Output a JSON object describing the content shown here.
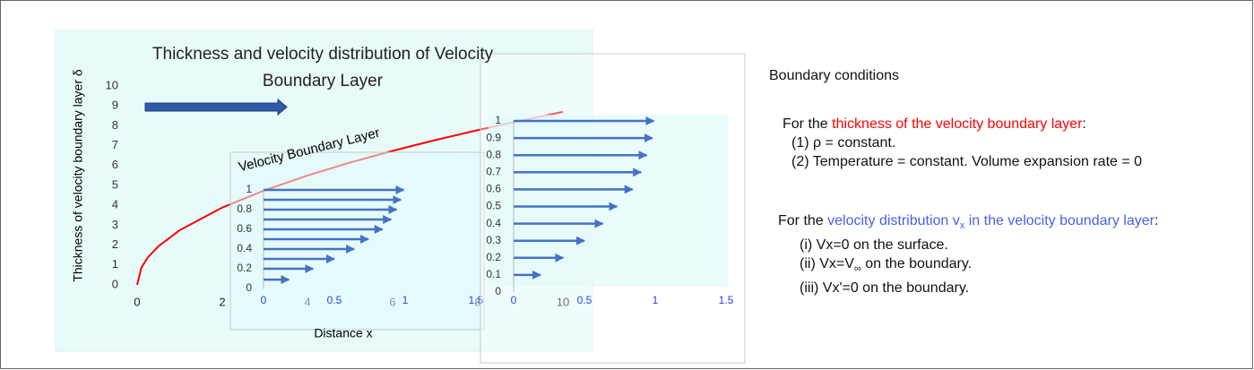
{
  "chart_data": [
    {
      "type": "line",
      "title": "Thickness and velocity distribution of Velocity Boundary Layer",
      "xlabel": "Distance x",
      "ylabel": "Thickness of velocity boundary layer δ",
      "annotation": "Velocity Boundary Layer",
      "x": [
        0,
        0.1,
        0.25,
        0.5,
        1,
        2,
        3,
        4,
        5,
        6,
        7,
        8,
        9,
        10
      ],
      "values": [
        0,
        0.87,
        1.38,
        1.94,
        2.75,
        3.89,
        4.76,
        5.5,
        6.15,
        6.74,
        7.28,
        7.78,
        8.25,
        8.7
      ],
      "color": "#ff0000",
      "xlim": [
        0,
        10
      ],
      "ylim": [
        0,
        10
      ],
      "xticks": [
        0,
        2,
        4,
        6,
        8,
        10
      ],
      "yticks": [
        0,
        1,
        2,
        3,
        4,
        5,
        6,
        7,
        8,
        9,
        10
      ]
    },
    {
      "type": "quiver",
      "y": [
        0.09,
        0.2,
        0.3,
        0.4,
        0.5,
        0.6,
        0.7,
        0.8,
        0.9,
        1
      ],
      "values": [
        0.18,
        0.35,
        0.5,
        0.64,
        0.74,
        0.84,
        0.9,
        0.94,
        0.97,
        0.99
      ],
      "color": "#4472c4",
      "xlim": [
        0,
        1.5
      ],
      "ylim": [
        0,
        1
      ],
      "xticks": [
        0,
        0.5,
        1,
        1.5
      ],
      "yticks": [
        0,
        0.2,
        0.4,
        0.6,
        0.8,
        1
      ]
    },
    {
      "type": "quiver",
      "y": [
        0.1,
        0.2,
        0.3,
        0.4,
        0.5,
        0.6,
        0.7,
        0.8,
        0.9,
        1
      ],
      "values": [
        0.19,
        0.35,
        0.5,
        0.63,
        0.73,
        0.84,
        0.9,
        0.94,
        0.98,
        0.99
      ],
      "color": "#4472c4",
      "xlim": [
        0,
        1.5
      ],
      "ylim": [
        0,
        1
      ],
      "xticks": [
        0,
        0.5,
        1,
        1.5
      ],
      "yticks": [
        0,
        0.1,
        0.2,
        0.3,
        0.4,
        0.5,
        0.6,
        0.7,
        0.8,
        0.9,
        1
      ]
    }
  ],
  "notes": {
    "heading": "Boundary conditions",
    "thickness": {
      "prefix": "For the",
      "highlight": "thickness of the velocity boundary layer",
      "suffix": ":",
      "items": [
        "(1) ρ = constant.",
        "(2) Temperature = constant. Volume expansion rate = 0"
      ]
    },
    "velocity": {
      "prefix": "For the",
      "highlight": "velocity distribution v",
      "highlight_sub": "x",
      "highlight_rest": "in the velocity boundary layer",
      "suffix": ":",
      "item_1": "(i) Vx=0 on the surface.",
      "item_2": {
        "before": "(ii) Vx=V",
        "sub": "∞",
        "after": "on the boundary."
      },
      "item_3": "(iii) Vx'=0 on the boundary."
    }
  }
}
